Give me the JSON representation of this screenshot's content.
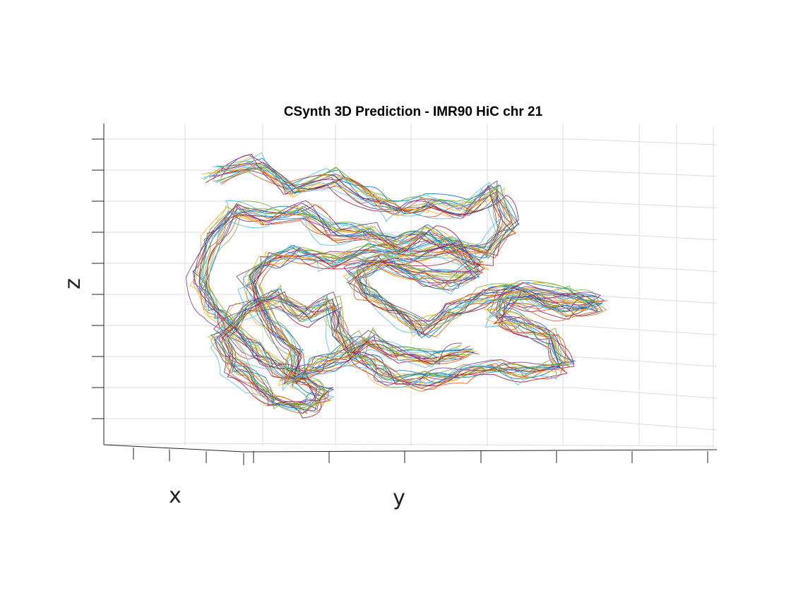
{
  "chart_data": {
    "type": "line3d",
    "title": "CSynth 3D Prediction - IMR90 HiC chr 21",
    "xlabel": "x",
    "ylabel": "y",
    "zlabel": "z",
    "grid": true,
    "tick_labels_shown": false,
    "view": "3d-perspective",
    "series_count": 20,
    "colors": [
      "#0072BD",
      "#D95319",
      "#EDB120",
      "#7E2F8E",
      "#77AC30",
      "#4DBEEE",
      "#A2142F"
    ],
    "x_ticks": 4,
    "y_ticks": 7,
    "z_ticks": 10
  }
}
